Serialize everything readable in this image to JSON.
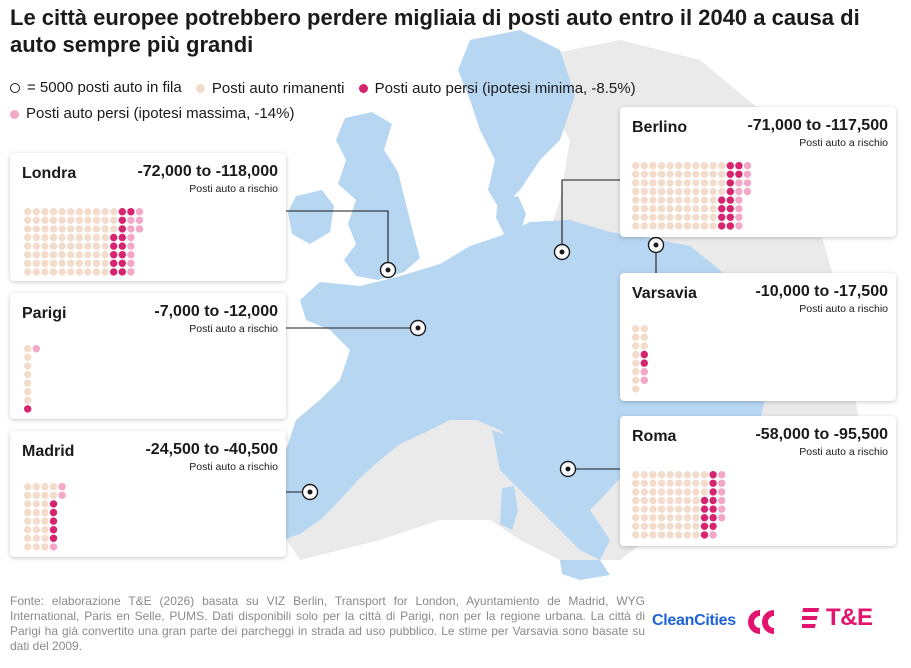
{
  "title": "Le città europee potrebbero perdere migliaia di posti auto entro il 2040 a causa di auto sempre più grandi",
  "legend": {
    "unit": "= 5000 posti auto in fila",
    "remaining": "Posti auto rimanenti",
    "lost_min": "Posti auto persi (ipotesi minima, -8.5%)",
    "lost_max": "Posti auto persi (ipotesi massima, -14%)"
  },
  "colors": {
    "remaining": "#f3dccb",
    "lost_min": "#d6246e",
    "lost_max": "#f2a8c6",
    "map_land": "#b7d6f2",
    "map_other": "#e8e8e8",
    "marker": "#1a1a1a"
  },
  "chart_data": {
    "type": "waffle",
    "unit": "1 dot = 5000 posti auto in fila",
    "subtitle": "Posti auto a rischio",
    "cities": [
      {
        "name": "Londra",
        "range_label": "-72,000 to -118,000",
        "remaining": 834,
        "lost_min": 72000,
        "lost_max": 118000
      },
      {
        "name": "Parigi",
        "range_label": "-7,000 to -12,000",
        "remaining": 72,
        "lost_min": 7000,
        "lost_max": 12000
      },
      {
        "name": "Madrid",
        "range_label": "-24,500 to -40,500",
        "remaining": 263,
        "lost_min": 24500,
        "lost_max": 40500
      },
      {
        "name": "Berlino",
        "range_label": "-71,000 to -117,500",
        "remaining": 836,
        "lost_min": 71000,
        "lost_max": 117500
      },
      {
        "name": "Varsavia",
        "range_label": "-10,000 to -17,500",
        "remaining": 108,
        "lost_min": 10000,
        "lost_max": 17500
      },
      {
        "name": "Roma",
        "range_label": "-58,000 to -95,500",
        "remaining": 670,
        "lost_min": 58000,
        "lost_max": 95500
      }
    ]
  },
  "footer": "Fonte: elaborazione T&E (2026) basata su VIZ Berlin, Transport for London, Ayuntamiento de Madrid, WYG International, Paris en Selle, PUMS. Dati disponibili solo per la città di Parigi, non per la regione urbana. La città di Parigi ha già convertito una gran parte dei parcheggi in strada ad uso pubblico. Le stime per Varsavia sono basate su dati del 2009.",
  "logos": {
    "cleancities": "CleanCities",
    "te": "T&E"
  }
}
